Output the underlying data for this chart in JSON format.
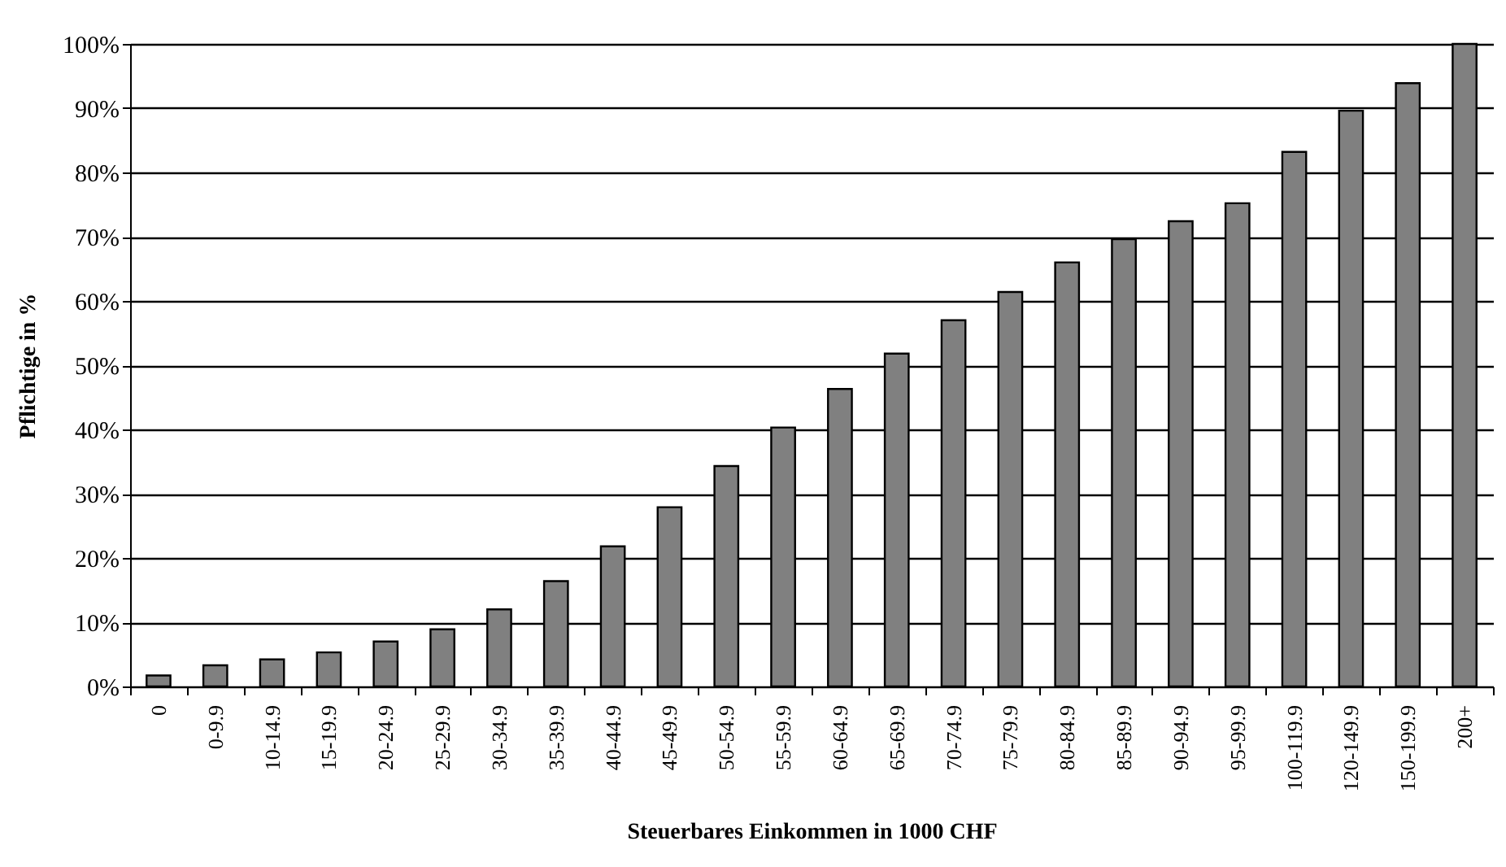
{
  "chart_data": {
    "type": "bar",
    "xlabel": "Steuerbares Einkommen in 1000 CHF",
    "ylabel": "Pflichtige in %",
    "categories": [
      "0",
      "0-9.9",
      "10-14.9",
      "15-19.9",
      "20-24.9",
      "25-29.9",
      "30-34.9",
      "35-39.9",
      "40-44.9",
      "45-49.9",
      "50-54.9",
      "55-59.9",
      "60-64.9",
      "65-69.9",
      "70-74.9",
      "75-79.9",
      "80-84.9",
      "85-89.9",
      "90-94.9",
      "95-99.9",
      "100-119.9",
      "120-149.9",
      "150-199.9",
      "200+"
    ],
    "values": [
      1.7,
      3.3,
      4.2,
      5.3,
      7.0,
      8.9,
      12.0,
      16.4,
      21.8,
      27.9,
      34.3,
      40.3,
      46.3,
      51.8,
      57.0,
      61.4,
      66.0,
      69.6,
      72.4,
      75.2,
      83.2,
      89.6,
      93.9,
      100
    ],
    "color": "#808080",
    "ylim": [
      0,
      100
    ],
    "yticks": [
      {
        "value": 0,
        "label": "0%"
      },
      {
        "value": 10,
        "label": "10%"
      },
      {
        "value": 20,
        "label": "20%"
      },
      {
        "value": 30,
        "label": "30%"
      },
      {
        "value": 40,
        "label": "40%"
      },
      {
        "value": 50,
        "label": "50%"
      },
      {
        "value": 60,
        "label": "60%"
      },
      {
        "value": 70,
        "label": "70%"
      },
      {
        "value": 80,
        "label": "80%"
      },
      {
        "value": 90,
        "label": "90%"
      },
      {
        "value": 100,
        "label": "100%"
      }
    ],
    "grid": "y"
  }
}
